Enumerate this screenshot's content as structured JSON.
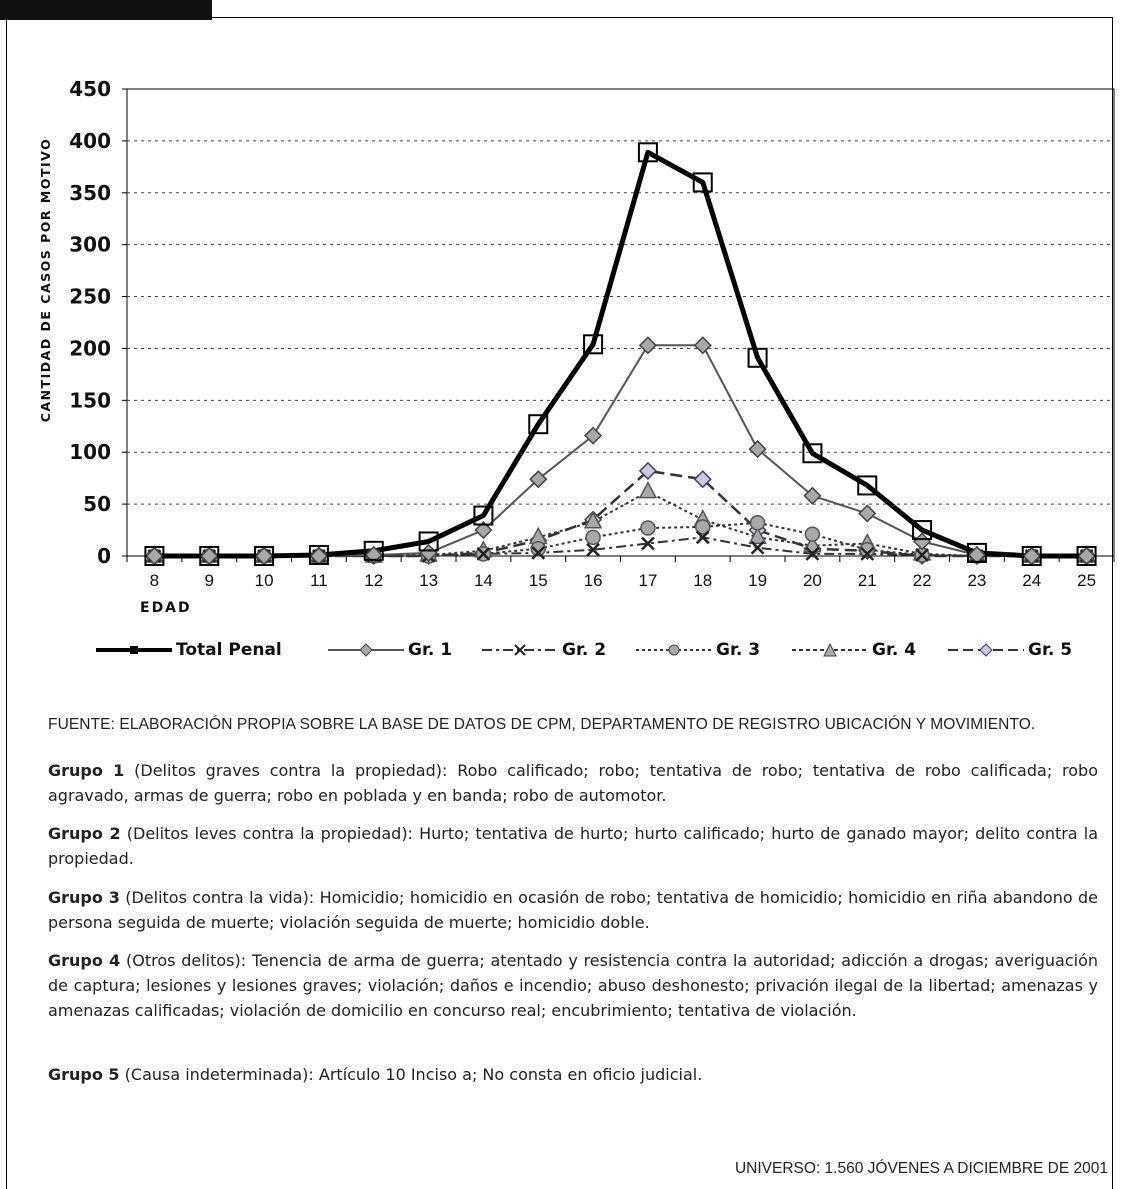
{
  "chart_data": {
    "type": "line",
    "title": "",
    "xlabel": "EDAD",
    "ylabel": "CANTIDAD DE CASOS POR MOTIVO",
    "ylim": [
      0,
      450
    ],
    "yticks": [
      0,
      50,
      100,
      150,
      200,
      250,
      300,
      350,
      400,
      450
    ],
    "categories": [
      "8",
      "9",
      "10",
      "11",
      "12",
      "13",
      "14",
      "15",
      "16",
      "17",
      "18",
      "19",
      "20",
      "21",
      "22",
      "23",
      "24",
      "25"
    ],
    "grid": "horizontal dotted",
    "legend_position": "bottom",
    "series": [
      {
        "name": "Total Penal",
        "color": "#000000",
        "style": "solid-thick",
        "marker": "square-open",
        "values": [
          0,
          0,
          0,
          1,
          5,
          14,
          39,
          127,
          204,
          389,
          360,
          191,
          99,
          68,
          25,
          3,
          0,
          0
        ]
      },
      {
        "name": "Gr. 1",
        "color": "#555555",
        "style": "solid",
        "marker": "diamond-gray",
        "values": [
          0,
          0,
          0,
          0,
          1,
          3,
          25,
          74,
          116,
          203,
          203,
          103,
          58,
          41,
          14,
          1,
          0,
          0
        ]
      },
      {
        "name": "Gr. 2",
        "color": "#333333",
        "style": "dash-dot",
        "marker": "x",
        "values": [
          0,
          0,
          0,
          0,
          0,
          0,
          2,
          3,
          6,
          12,
          18,
          8,
          2,
          2,
          1,
          0,
          0,
          0
        ]
      },
      {
        "name": "Gr. 3",
        "color": "#333333",
        "style": "dotted",
        "marker": "circle-gray",
        "values": [
          0,
          0,
          0,
          0,
          0,
          0,
          2,
          7,
          18,
          27,
          28,
          32,
          21,
          6,
          1,
          0,
          0,
          0
        ]
      },
      {
        "name": "Gr. 4",
        "color": "#333333",
        "style": "dotted",
        "marker": "triangle-gray",
        "values": [
          0,
          0,
          0,
          0,
          0,
          1,
          5,
          18,
          33,
          62,
          35,
          18,
          10,
          12,
          2,
          0,
          0,
          0
        ]
      },
      {
        "name": "Gr. 5",
        "color": "#333333",
        "style": "dash",
        "marker": "diamond-lavender",
        "values": [
          0,
          0,
          0,
          0,
          0,
          0,
          3,
          15,
          35,
          82,
          74,
          25,
          7,
          5,
          0,
          0,
          0,
          0
        ]
      }
    ]
  },
  "legend": [
    "Total Penal",
    "Gr. 1",
    "Gr. 2",
    "Gr. 3",
    "Gr. 4",
    "Gr. 5"
  ],
  "source": "FUENTE: ELABORACIÓN PROPIA SOBRE LA BASE DE DATOS DE CPM, DEPARTAMENTO DE REGISTRO UBICACIÓN Y MOVIMIENTO.",
  "groups": [
    {
      "label": "Grupo 1",
      "text": " (Delitos graves contra la propiedad): Robo calificado; robo; tentativa de robo; tentativa de robo calificada; robo agravado, armas de guerra; robo en poblada y en banda; robo de automotor."
    },
    {
      "label": "Grupo 2",
      "text": " (Delitos leves contra la propiedad): Hurto; tentativa de hurto; hurto calificado; hurto de ganado mayor; delito contra la propiedad."
    },
    {
      "label": "Grupo 3",
      "text": " (Delitos contra la vida): Homicidio; homicidio en ocasión de robo; tentativa de homicidio; homicidio en riña abandono de persona seguida de muerte; violación seguida de muerte; homicidio doble."
    },
    {
      "label": "Grupo 4",
      "text": " (Otros delitos): Tenencia de arma de guerra; atentado y resistencia contra la autoridad; adicción a drogas; averiguación de captura; lesiones y lesiones graves; violación; daños e incendio; abuso deshonesto; privación ilegal de la libertad; amenazas y amenazas calificadas; violación de domicilio en concurso real; encubrimiento; tentativa de violación."
    },
    {
      "label": "Grupo 5",
      "text": " (Causa indeterminada): Artículo 10 Inciso a; No consta en oficio judicial."
    }
  ],
  "universe": "UNIVERSO: 1.560 JÓVENES A DICIEMBRE DE 2001"
}
